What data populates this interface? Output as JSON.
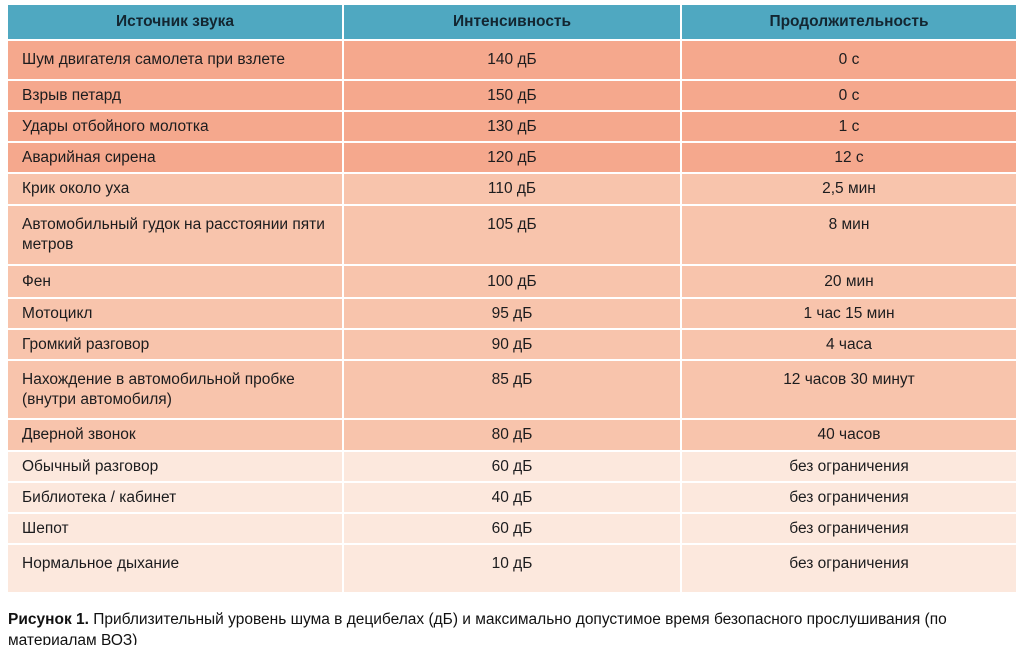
{
  "colors": {
    "header_bg": "#4FA8C1",
    "row_high": "#F5A88D",
    "row_medium": "#F8C4AC",
    "row_low": "#FCE8DD",
    "separator": "#FFFFFF",
    "text": "#1C1C1E"
  },
  "chart_data": {
    "type": "table",
    "title": "Рисунок 1. Приблизительный уровень шума в децибелах (дБ) и максимально допустимое время безопасного прослушивания (по материалам ВОЗ)",
    "columns": [
      "Источник звука",
      "Интенсивность",
      "Продолжительность"
    ],
    "rows": [
      {
        "source": "Шум двигателя самолета при взлете",
        "intensity": "140 дБ",
        "duration": "0 с",
        "level": "high"
      },
      {
        "source": "Взрыв петард",
        "intensity": "150 дБ",
        "duration": "0 с",
        "level": "high"
      },
      {
        "source": "Удары отбойного молотка",
        "intensity": "130 дБ",
        "duration": "1 с",
        "level": "high"
      },
      {
        "source": "Аварийная сирена",
        "intensity": "120 дБ",
        "duration": "12 с",
        "level": "high"
      },
      {
        "source": "Крик около уха",
        "intensity": "110 дБ",
        "duration": "2,5 мин",
        "level": "medium"
      },
      {
        "source": "Автомобильный гудок на расстоянии пяти метров",
        "intensity": "105 дБ",
        "duration": "8 мин",
        "level": "medium"
      },
      {
        "source": "Фен",
        "intensity": "100 дБ",
        "duration": "20 мин",
        "level": "medium"
      },
      {
        "source": "Мотоцикл",
        "intensity": "95 дБ",
        "duration": "1 час 15 мин",
        "level": "medium"
      },
      {
        "source": "Громкий разговор",
        "intensity": "90 дБ",
        "duration": "4 часа",
        "level": "medium"
      },
      {
        "source": "Нахождение в автомобильной пробке (внутри автомобиля)",
        "intensity": "85 дБ",
        "duration": "12 часов 30 минут",
        "level": "medium"
      },
      {
        "source": "Дверной звонок",
        "intensity": "80 дБ",
        "duration": "40 часов",
        "level": "medium"
      },
      {
        "source": "Обычный разговор",
        "intensity": "60 дБ",
        "duration": "без ограничения",
        "level": "low"
      },
      {
        "source": "Библиотека / кабинет",
        "intensity": "40 дБ",
        "duration": "без ограничения",
        "level": "low"
      },
      {
        "source": "Шепот",
        "intensity": "60 дБ",
        "duration": "без ограничения",
        "level": "low"
      },
      {
        "source": "Нормальное дыхание",
        "intensity": "10 дБ",
        "duration": "без ограничения",
        "level": "low"
      }
    ]
  },
  "caption": {
    "label": "Рисунок 1.",
    "text": "Приблизительный уровень шума в децибелах (дБ) и максимально допустимое время безопасного прослушивания (по материалам ВОЗ)"
  }
}
